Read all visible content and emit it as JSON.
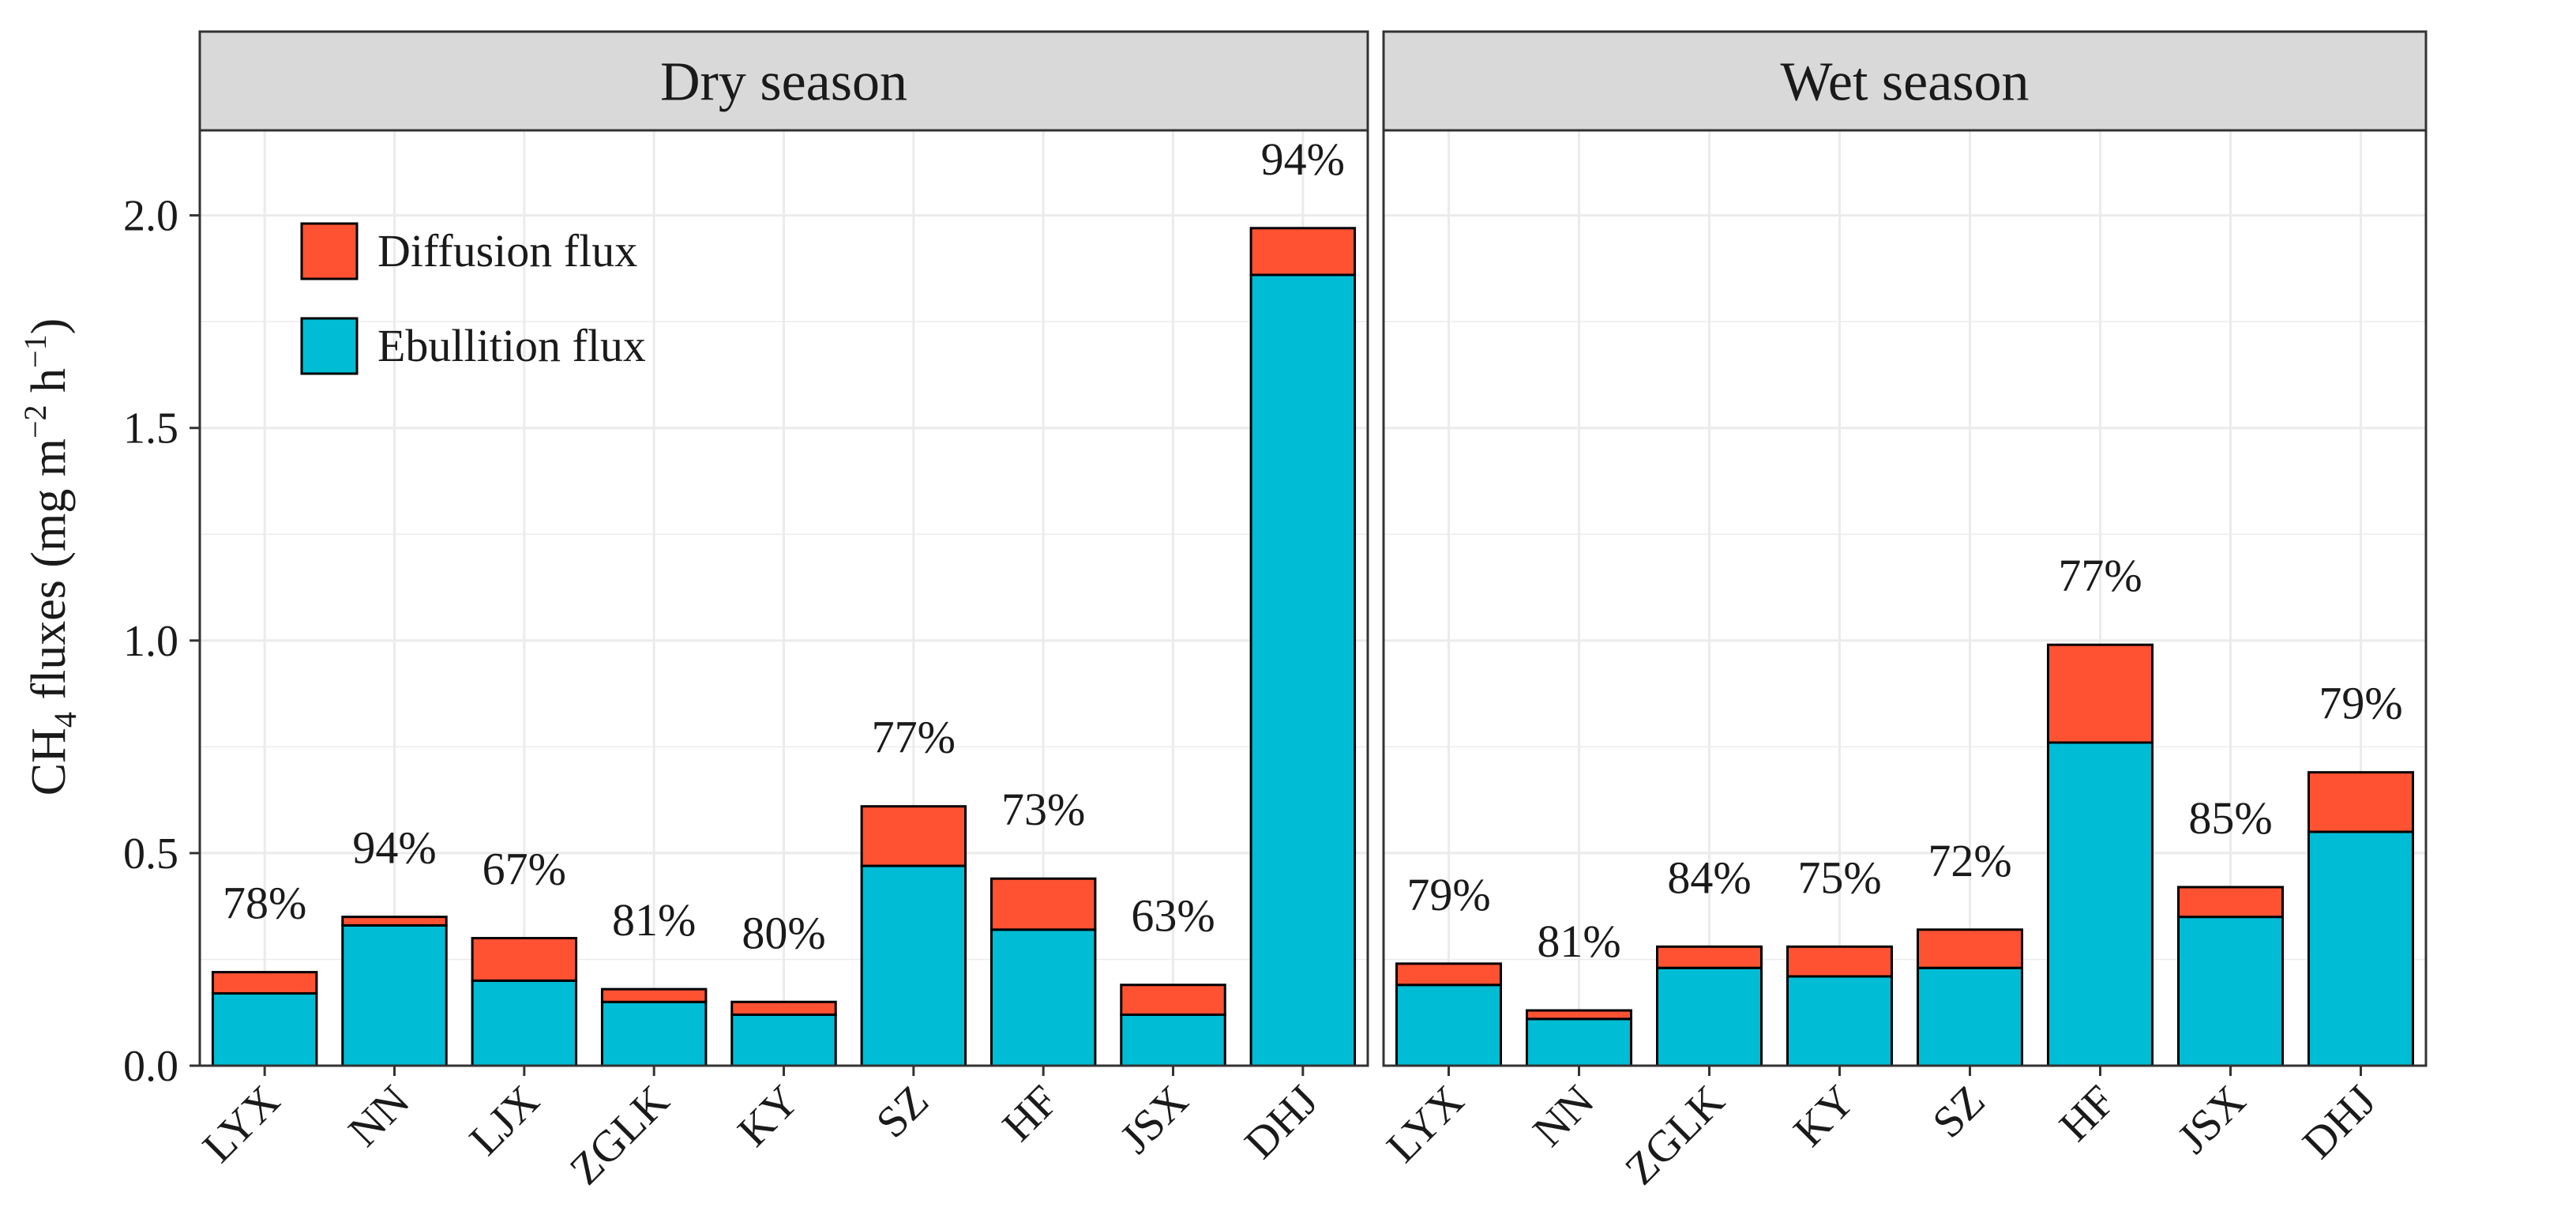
{
  "colors": {
    "ebullition": "#00BCD4",
    "diffusion": "#FF5233",
    "strip_bg": "#D9D9D9",
    "grid": "#EBEBEB",
    "border": "#333333"
  },
  "chart_data": {
    "type": "bar",
    "stacked": true,
    "y_axis": {
      "label_prefix": "CH",
      "label_sub": "4",
      "label_mid": " fluxes (mg m",
      "label_sup1": "−2",
      "label_mid2": " h",
      "label_sup2": "−1",
      "label_suffix": ")",
      "ylim": [
        0,
        2.2
      ],
      "ticks": [
        0.0,
        0.5,
        1.0,
        1.5,
        2.0
      ],
      "tick_labels": [
        "0.0",
        "0.5",
        "1.0",
        "1.5",
        "2.0"
      ]
    },
    "legend": {
      "placement": "top-left",
      "items": [
        {
          "label": "Diffusion flux",
          "color": "#FF5233"
        },
        {
          "label": "Ebullition flux",
          "color": "#00BCD4"
        }
      ]
    },
    "grid": true,
    "facets": [
      {
        "title": "Dry season",
        "categories": [
          "LYX",
          "NN",
          "LJX",
          "ZGLK",
          "KY",
          "SZ",
          "HF",
          "JSX",
          "DHJ"
        ],
        "series": [
          {
            "name": "Ebullition flux",
            "values": [
              0.17,
              0.33,
              0.2,
              0.15,
              0.12,
              0.47,
              0.32,
              0.12,
              1.86
            ]
          },
          {
            "name": "Diffusion flux",
            "values": [
              0.05,
              0.02,
              0.1,
              0.03,
              0.03,
              0.14,
              0.12,
              0.07,
              0.11
            ]
          }
        ],
        "percent_labels": [
          "78%",
          "94%",
          "67%",
          "81%",
          "80%",
          "77%",
          "73%",
          "63%",
          "94%"
        ]
      },
      {
        "title": "Wet season",
        "categories": [
          "LYX",
          "NN",
          "ZGLK",
          "KY",
          "SZ",
          "HF",
          "JSX",
          "DHJ"
        ],
        "series": [
          {
            "name": "Ebullition flux",
            "values": [
              0.19,
              0.11,
              0.23,
              0.21,
              0.23,
              0.76,
              0.35,
              0.55
            ]
          },
          {
            "name": "Diffusion flux",
            "values": [
              0.05,
              0.02,
              0.05,
              0.07,
              0.09,
              0.23,
              0.07,
              0.14
            ]
          }
        ],
        "percent_labels": [
          "79%",
          "81%",
          "84%",
          "75%",
          "72%",
          "77%",
          "85%",
          "79%"
        ]
      }
    ]
  }
}
